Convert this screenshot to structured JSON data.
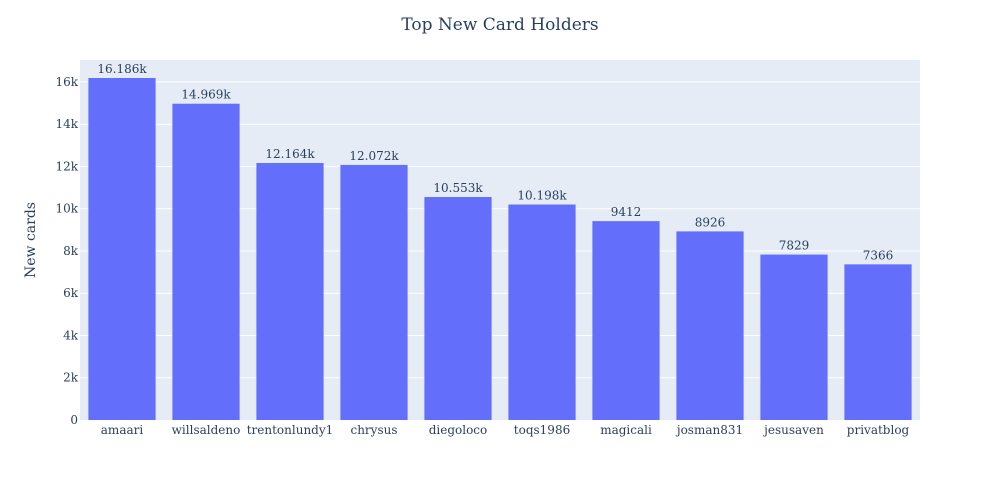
{
  "chart_data": {
    "type": "bar",
    "title": "Top New Card Holders",
    "xlabel": "",
    "ylabel": "New cards",
    "categories": [
      "amaari",
      "willsaldeno",
      "trentonlundy1",
      "chrysus",
      "diegoloco",
      "toqs1986",
      "magicali",
      "josman831",
      "jesusaven",
      "privatblog"
    ],
    "values": [
      16186,
      14969,
      12164,
      12072,
      10553,
      10198,
      9412,
      8926,
      7829,
      7366
    ],
    "data_labels": [
      "16.186k",
      "14.969k",
      "12.164k",
      "12.072k",
      "10.553k",
      "10.198k",
      "9412",
      "8926",
      "7829",
      "7366"
    ],
    "yticks": [
      0,
      2000,
      4000,
      6000,
      8000,
      10000,
      12000,
      14000,
      16000
    ],
    "ytick_labels": [
      "0",
      "2k",
      "4k",
      "6k",
      "8k",
      "10k",
      "12k",
      "14k",
      "16k"
    ],
    "ylim": [
      0,
      17038
    ],
    "grid": true,
    "legend": "none",
    "colors": {
      "bar": "#636efa",
      "plot_background": "#e5ecf6",
      "grid": "#ffffff",
      "text": "#2a3f5f"
    }
  }
}
